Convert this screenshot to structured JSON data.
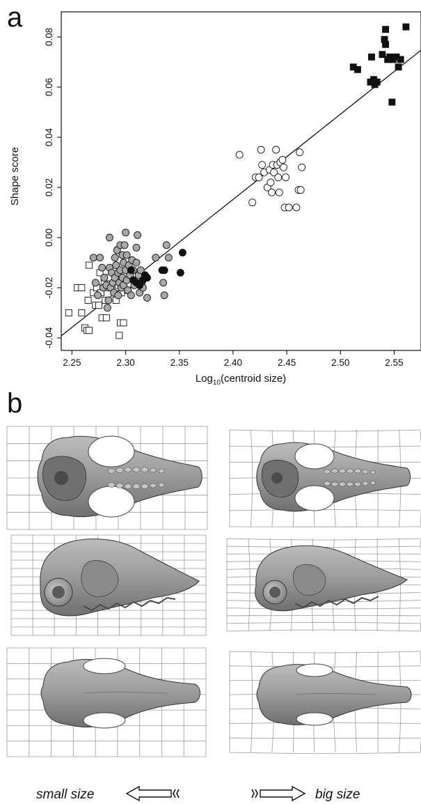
{
  "figure": {
    "panel_a_letter": "a",
    "panel_b_letter": "b",
    "caption_left": "small size",
    "caption_right": "big size"
  },
  "chart_data": {
    "type": "scatter",
    "xlabel_prefix": "Log",
    "xlabel_sub": "10",
    "xlabel_suffix": "(centroid size)",
    "ylabel": "Shape score",
    "xlim": [
      2.24,
      2.575
    ],
    "ylim": [
      -0.045,
      0.09
    ],
    "xticks": [
      2.25,
      2.3,
      2.35,
      2.4,
      2.45,
      2.5,
      2.55
    ],
    "xtick_labels": [
      "2.25",
      "2.30",
      "2.35",
      "2.40",
      "2.45",
      "2.50",
      "2.55"
    ],
    "yticks": [
      -0.04,
      -0.02,
      0.0,
      0.02,
      0.04,
      0.06,
      0.08
    ],
    "ytick_labels": [
      "-0.04",
      "-0.02",
      "0.00",
      "0.02",
      "0.04",
      "0.06",
      "0.08"
    ],
    "grid": false,
    "regression_line": {
      "x": [
        2.24,
        2.575
      ],
      "y": [
        -0.0392,
        0.0747
      ]
    },
    "series": [
      {
        "marker": "square-open",
        "points": [
          [
            2.247,
            -0.03
          ],
          [
            2.255,
            -0.02
          ],
          [
            2.259,
            -0.02
          ],
          [
            2.259,
            -0.03
          ],
          [
            2.262,
            -0.036
          ],
          [
            2.264,
            -0.037
          ],
          [
            2.266,
            -0.037
          ],
          [
            2.265,
            -0.025
          ],
          [
            2.266,
            -0.011
          ],
          [
            2.27,
            -0.022
          ],
          [
            2.272,
            -0.027
          ],
          [
            2.273,
            -0.02
          ],
          [
            2.275,
            -0.027
          ],
          [
            2.276,
            -0.014
          ],
          [
            2.277,
            -0.022
          ],
          [
            2.278,
            -0.032
          ],
          [
            2.28,
            -0.018
          ],
          [
            2.281,
            -0.025
          ],
          [
            2.282,
            -0.032
          ],
          [
            2.285,
            -0.02
          ],
          [
            2.285,
            -0.016
          ],
          [
            2.29,
            -0.013
          ],
          [
            2.291,
            -0.025
          ],
          [
            2.293,
            -0.019
          ],
          [
            2.294,
            -0.039
          ],
          [
            2.295,
            -0.034
          ],
          [
            2.296,
            -0.022
          ],
          [
            2.298,
            -0.034
          ],
          [
            2.302,
            -0.021
          ]
        ]
      },
      {
        "marker": "circle-gray",
        "points": [
          [
            2.27,
            -0.008
          ],
          [
            2.272,
            -0.018
          ],
          [
            2.274,
            -0.023
          ],
          [
            2.276,
            -0.008
          ],
          [
            2.278,
            -0.012
          ],
          [
            2.279,
            -0.02
          ],
          [
            2.28,
            -0.016
          ],
          [
            2.282,
            -0.019
          ],
          [
            2.283,
            -0.028
          ],
          [
            2.284,
            -0.025
          ],
          [
            2.285,
            0.0
          ],
          [
            2.285,
            -0.012
          ],
          [
            2.286,
            -0.02
          ],
          [
            2.287,
            -0.014
          ],
          [
            2.288,
            -0.018
          ],
          [
            2.289,
            -0.022
          ],
          [
            2.29,
            -0.008
          ],
          [
            2.29,
            -0.016
          ],
          [
            2.291,
            -0.011
          ],
          [
            2.292,
            -0.005
          ],
          [
            2.293,
            -0.014
          ],
          [
            2.293,
            -0.023
          ],
          [
            2.294,
            -0.018
          ],
          [
            2.295,
            -0.003
          ],
          [
            2.295,
            -0.013
          ],
          [
            2.296,
            -0.02
          ],
          [
            2.297,
            -0.007
          ],
          [
            2.297,
            -0.016
          ],
          [
            2.298,
            -0.01
          ],
          [
            2.298,
            -0.019
          ],
          [
            2.299,
            -0.003
          ],
          [
            2.3,
            0.002
          ],
          [
            2.3,
            -0.013
          ],
          [
            2.301,
            -0.007
          ],
          [
            2.301,
            -0.017
          ],
          [
            2.302,
            -0.021
          ],
          [
            2.303,
            -0.011
          ],
          [
            2.304,
            -0.015
          ],
          [
            2.305,
            -0.023
          ],
          [
            2.306,
            -0.009
          ],
          [
            2.307,
            -0.013
          ],
          [
            2.308,
            -0.019
          ],
          [
            2.31,
            -0.004
          ],
          [
            2.31,
            -0.01
          ],
          [
            2.311,
            0.001
          ],
          [
            2.312,
            -0.015
          ],
          [
            2.313,
            -0.022
          ],
          [
            2.314,
            -0.013
          ],
          [
            2.315,
            -0.018
          ],
          [
            2.316,
            -0.02
          ],
          [
            2.318,
            -0.015
          ],
          [
            2.32,
            -0.024
          ],
          [
            2.328,
            -0.008
          ],
          [
            2.335,
            -0.018
          ],
          [
            2.336,
            -0.023
          ],
          [
            2.338,
            -0.003
          ],
          [
            2.34,
            -0.008
          ]
        ]
      },
      {
        "marker": "circle-black",
        "points": [
          [
            2.305,
            -0.013
          ],
          [
            2.307,
            -0.017
          ],
          [
            2.31,
            -0.018
          ],
          [
            2.313,
            -0.019
          ],
          [
            2.316,
            -0.017
          ],
          [
            2.318,
            -0.015
          ],
          [
            2.32,
            -0.016
          ],
          [
            2.334,
            -0.013
          ],
          [
            2.336,
            -0.013
          ],
          [
            2.351,
            -0.014
          ],
          [
            2.353,
            -0.006
          ]
        ]
      },
      {
        "marker": "circle-open",
        "points": [
          [
            2.406,
            0.033
          ],
          [
            2.418,
            0.014
          ],
          [
            2.421,
            0.024
          ],
          [
            2.424,
            0.024
          ],
          [
            2.426,
            0.035
          ],
          [
            2.427,
            0.029
          ],
          [
            2.429,
            0.026
          ],
          [
            2.432,
            0.02
          ],
          [
            2.434,
            0.027
          ],
          [
            2.435,
            0.022
          ],
          [
            2.436,
            0.018
          ],
          [
            2.437,
            0.029
          ],
          [
            2.438,
            0.026
          ],
          [
            2.44,
            0.035
          ],
          [
            2.441,
            0.029
          ],
          [
            2.442,
            0.024
          ],
          [
            2.443,
            0.018
          ],
          [
            2.444,
            0.03
          ],
          [
            2.446,
            0.031
          ],
          [
            2.447,
            0.028
          ],
          [
            2.448,
            0.012
          ],
          [
            2.449,
            0.024
          ],
          [
            2.452,
            0.012
          ],
          [
            2.459,
            0.012
          ],
          [
            2.461,
            0.019
          ],
          [
            2.462,
            0.034
          ],
          [
            2.463,
            0.019
          ],
          [
            2.464,
            0.028
          ]
        ]
      },
      {
        "marker": "square-black",
        "points": [
          [
            2.512,
            0.068
          ],
          [
            2.516,
            0.067
          ],
          [
            2.528,
            0.062
          ],
          [
            2.529,
            0.072
          ],
          [
            2.531,
            0.063
          ],
          [
            2.532,
            0.061
          ],
          [
            2.534,
            0.062
          ],
          [
            2.539,
            0.073
          ],
          [
            2.541,
            0.079
          ],
          [
            2.542,
            0.083
          ],
          [
            2.542,
            0.077
          ],
          [
            2.544,
            0.071
          ],
          [
            2.546,
            0.072
          ],
          [
            2.548,
            0.054
          ],
          [
            2.549,
            0.071
          ],
          [
            2.552,
            0.072
          ],
          [
            2.554,
            0.068
          ],
          [
            2.556,
            0.071
          ],
          [
            2.561,
            0.084
          ]
        ]
      }
    ]
  },
  "skulls": [
    {
      "view": "ventral",
      "side": "small"
    },
    {
      "view": "ventral",
      "side": "big"
    },
    {
      "view": "lateral",
      "side": "small"
    },
    {
      "view": "lateral",
      "side": "big"
    },
    {
      "view": "dorsal",
      "side": "small"
    },
    {
      "view": "dorsal",
      "side": "big"
    }
  ]
}
